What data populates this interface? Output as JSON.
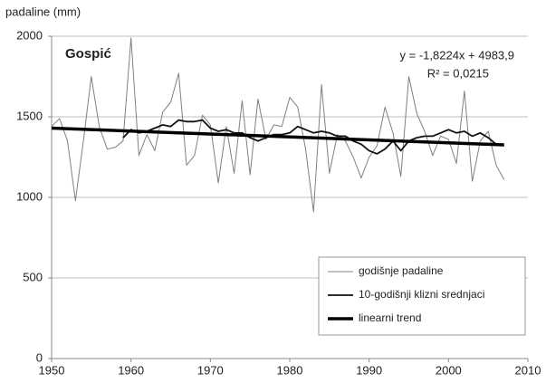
{
  "chart_data": {
    "type": "line",
    "y_axis_label": "padaline (mm)",
    "annotations": {
      "station": "Gospić",
      "equation": "y = -1,8224x + 4983,9",
      "r2": "R² = 0,0215"
    },
    "x": [
      1950,
      1951,
      1952,
      1953,
      1954,
      1955,
      1956,
      1957,
      1958,
      1959,
      1960,
      1961,
      1962,
      1963,
      1964,
      1965,
      1966,
      1967,
      1968,
      1969,
      1970,
      1971,
      1972,
      1973,
      1974,
      1975,
      1976,
      1977,
      1978,
      1979,
      1980,
      1981,
      1982,
      1983,
      1984,
      1985,
      1986,
      1987,
      1988,
      1989,
      1990,
      1991,
      1992,
      1993,
      1994,
      1995,
      1996,
      1997,
      1998,
      1999,
      2000,
      2001,
      2002,
      2003,
      2004,
      2005,
      2006,
      2007
    ],
    "series": [
      {
        "name": "godišnje padaline",
        "color": "#808080",
        "values": [
          1440,
          1490,
          1350,
          980,
          1350,
          1750,
          1440,
          1300,
          1310,
          1350,
          1990,
          1260,
          1390,
          1290,
          1530,
          1590,
          1770,
          1200,
          1260,
          1510,
          1450,
          1090,
          1440,
          1150,
          1600,
          1140,
          1610,
          1360,
          1450,
          1440,
          1620,
          1560,
          1300,
          910,
          1700,
          1150,
          1390,
          1350,
          1250,
          1120,
          1250,
          1320,
          1560,
          1400,
          1130,
          1750,
          1520,
          1410,
          1260,
          1380,
          1360,
          1210,
          1660,
          1100,
          1350,
          1410,
          1200,
          1110
        ]
      },
      {
        "name": "10-godišnji klizni srednjaci",
        "color": "#111111",
        "values": [
          null,
          null,
          null,
          null,
          null,
          null,
          null,
          null,
          null,
          1370,
          1420,
          1400,
          1410,
          1430,
          1450,
          1440,
          1480,
          1470,
          1470,
          1480,
          1430,
          1410,
          1420,
          1400,
          1400,
          1370,
          1350,
          1370,
          1390,
          1390,
          1400,
          1440,
          1420,
          1400,
          1410,
          1400,
          1380,
          1380,
          1350,
          1330,
          1290,
          1270,
          1300,
          1350,
          1290,
          1350,
          1370,
          1380,
          1380,
          1400,
          1420,
          1400,
          1410,
          1380,
          1400,
          1370,
          1330,
          1320
        ]
      },
      {
        "name": "linearni trend",
        "color": "#000000",
        "x": [
          1950,
          2007
        ],
        "values": [
          1430,
          1326
        ]
      }
    ],
    "xlim": [
      1950,
      2010
    ],
    "xticks": [
      1950,
      1960,
      1970,
      1980,
      1990,
      2000,
      2010
    ],
    "ylim": [
      0,
      2000
    ],
    "yticks": [
      0,
      500,
      1000,
      1500,
      2000
    ],
    "grid": true,
    "legend": "lower right"
  }
}
